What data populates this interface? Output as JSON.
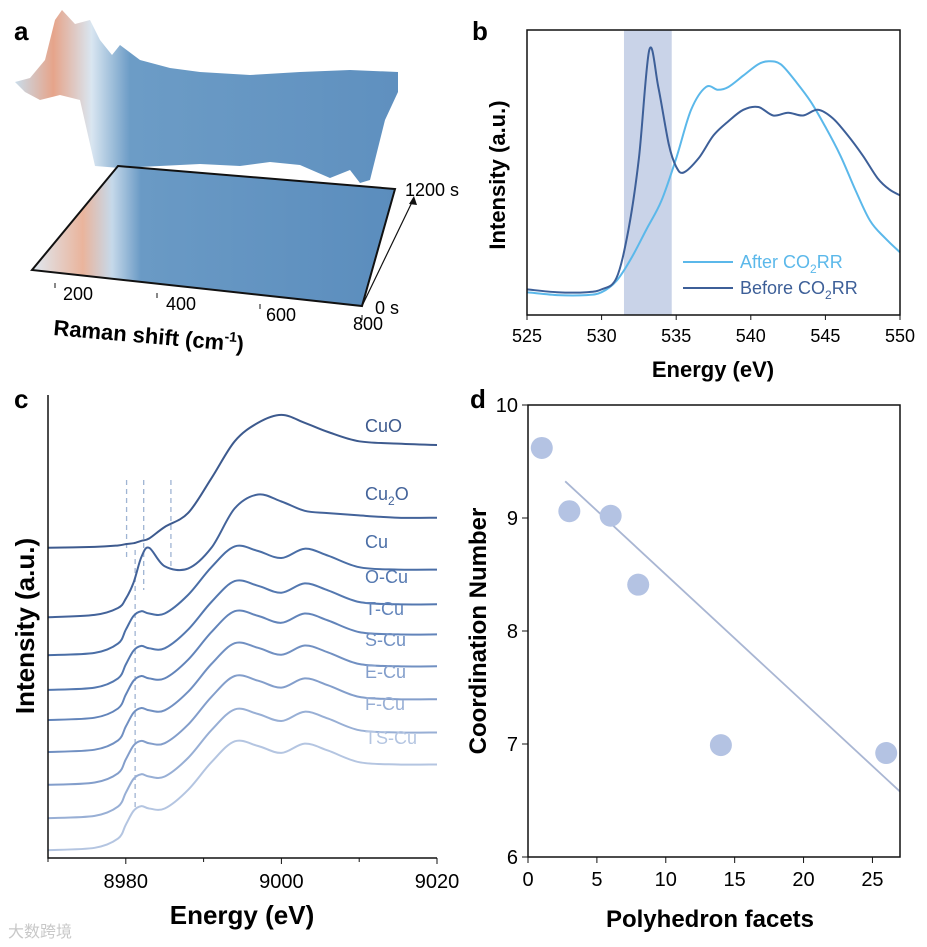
{
  "panels": {
    "a": "a",
    "b": "b",
    "c": "c",
    "d": "d"
  },
  "watermark": "大数跨境",
  "chart_data": [
    {
      "id": "a",
      "type": "surface",
      "xlabel": "Raman shift (cm",
      "xlabel_sup": "-1",
      "xlabel_end": ")",
      "xticks": [
        "200",
        "400",
        "600",
        "800"
      ],
      "time_start": "0 s",
      "time_end": "1200 s",
      "colors": {
        "low": "#4f86b8",
        "mid": "#dce8f2",
        "high": "#e8a58a"
      }
    },
    {
      "id": "b",
      "type": "line",
      "xlabel": "Energy (eV)",
      "ylabel": "Intensity (a.u.)",
      "xlim": [
        525,
        550
      ],
      "ylim": [
        0,
        1
      ],
      "xticks": [
        "525",
        "530",
        "535",
        "540",
        "545",
        "550"
      ],
      "highlight_band": [
        531.5,
        534.7
      ],
      "legend": [
        {
          "prefix": "After CO",
          "sub": "2",
          "suffix": "RR",
          "color": "#5bb8ea"
        },
        {
          "prefix": "Before CO",
          "sub": "2",
          "suffix": "RR",
          "color": "#3d5f98"
        }
      ],
      "series": [
        {
          "name": "After CO2RR",
          "color": "#5bb8ea",
          "x": [
            525,
            527,
            529,
            530,
            531,
            532,
            533,
            534,
            535,
            536,
            537,
            537.8,
            538.5,
            539.5,
            540.5,
            541.2,
            542,
            543,
            544,
            545,
            546,
            547,
            548,
            549,
            550
          ],
          "y": [
            0.08,
            0.07,
            0.07,
            0.08,
            0.12,
            0.2,
            0.3,
            0.4,
            0.55,
            0.72,
            0.8,
            0.79,
            0.8,
            0.84,
            0.88,
            0.89,
            0.88,
            0.82,
            0.75,
            0.66,
            0.56,
            0.44,
            0.33,
            0.27,
            0.22
          ]
        },
        {
          "name": "Before CO2RR",
          "color": "#3d5f98",
          "x": [
            525,
            527,
            529,
            530,
            531,
            531.8,
            532.5,
            533.2,
            533.8,
            534.5,
            535,
            535.5,
            536.5,
            537.5,
            538.5,
            539.5,
            540.5,
            541.5,
            542.5,
            543.5,
            544.5,
            545.5,
            546.5,
            547.5,
            548.5,
            549.3,
            550
          ],
          "y": [
            0.09,
            0.08,
            0.08,
            0.09,
            0.13,
            0.3,
            0.55,
            0.93,
            0.8,
            0.6,
            0.52,
            0.5,
            0.55,
            0.63,
            0.68,
            0.72,
            0.73,
            0.7,
            0.71,
            0.7,
            0.72,
            0.69,
            0.63,
            0.56,
            0.48,
            0.44,
            0.42
          ]
        }
      ]
    },
    {
      "id": "c",
      "type": "line",
      "xlabel": "Energy (eV)",
      "ylabel": "Intensity (a.u.)",
      "xlim": [
        8970,
        9020
      ],
      "ylim": [
        0,
        10
      ],
      "xticks": [
        "8980",
        "9000",
        "9020"
      ],
      "xtick_values": [
        8980,
        9000,
        9020
      ],
      "dashed_lines": [
        8980.1,
        8981.2,
        8982.3,
        8985.8
      ],
      "energy": [
        8970,
        8976,
        8979,
        8980,
        8981,
        8982,
        8983,
        8985,
        8988,
        8991,
        8994,
        8997,
        9000,
        9003,
        9006,
        9010,
        9015,
        9020
      ],
      "series": [
        {
          "name": "CuO",
          "color": "#3d5a8e",
          "y": [
            6.7,
            6.72,
            6.75,
            6.78,
            6.8,
            6.85,
            6.9,
            7.15,
            7.45,
            8.2,
            9.0,
            9.4,
            9.57,
            9.4,
            9.2,
            9.0,
            8.95,
            8.92
          ]
        },
        {
          "name": "Cu2O",
          "label_prefix": "Cu",
          "label_sub": "2",
          "label_suffix": "O",
          "color": "#43639a",
          "y": [
            5.2,
            5.25,
            5.4,
            5.6,
            5.95,
            6.5,
            6.7,
            6.3,
            6.25,
            6.7,
            7.55,
            7.85,
            7.7,
            7.5,
            7.45,
            7.4,
            7.35,
            7.35
          ]
        },
        {
          "name": "Cu",
          "color": "#4a6ea6",
          "baseline": 4.38
        },
        {
          "name": "O-Cu",
          "color": "#5478b0",
          "baseline": 3.63
        },
        {
          "name": "T-Cu",
          "color": "#6284ba",
          "baseline": 2.98
        },
        {
          "name": "S-Cu",
          "color": "#7190c2",
          "baseline": 2.29
        },
        {
          "name": "E-Cu",
          "color": "#839ecb",
          "baseline": 1.58
        },
        {
          "name": "F-Cu",
          "color": "#98afd5",
          "baseline": 0.86
        },
        {
          "name": "TS-Cu",
          "color": "#b4c5e1",
          "baseline": 0.17
        }
      ],
      "metal_template": [
        0,
        0.05,
        0.25,
        0.55,
        0.85,
        0.95,
        0.9,
        0.9,
        1.3,
        1.9,
        2.35,
        2.25,
        2.1,
        2.3,
        2.15,
        1.9,
        1.85,
        1.85
      ]
    },
    {
      "id": "d",
      "type": "scatter",
      "xlabel": "Polyhedron facets",
      "ylabel": "Coordination Number",
      "xlim": [
        0,
        27
      ],
      "ylim": [
        6,
        10
      ],
      "xticks": [
        "0",
        "5",
        "10",
        "15",
        "20",
        "25"
      ],
      "yticks": [
        "6",
        "7",
        "8",
        "9",
        "10"
      ],
      "color": "#b4c3e3",
      "line_color": "#a9b6d3",
      "points": [
        [
          1,
          9.62
        ],
        [
          3,
          9.06
        ],
        [
          6,
          9.02
        ],
        [
          8,
          8.41
        ],
        [
          14,
          6.99
        ],
        [
          26,
          6.92
        ]
      ],
      "fit": {
        "slope": -0.113,
        "intercept": 9.63,
        "x_range": [
          2.7,
          27
        ]
      }
    }
  ]
}
